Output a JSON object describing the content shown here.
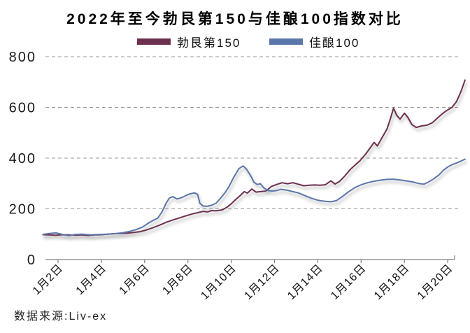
{
  "title": "2022年至今勃艮第150与佳酿100指数对比",
  "source_note": "数据来源:Liv-ex",
  "legend": [
    {
      "label": "勃艮第150",
      "color": "#6d2f4e"
    },
    {
      "label": "佳酿100",
      "color": "#5b76a9"
    }
  ],
  "colors": {
    "grid": "#999999",
    "axis": "#808080"
  },
  "chart_data": {
    "type": "line",
    "title": "2022年至今勃艮第150与佳酿100指数对比",
    "xlabel": "",
    "ylabel": "",
    "grid": "horizontal-dashed",
    "legend_position": "top",
    "source": "数据来源:Liv-ex",
    "y_axis": {
      "min": 0,
      "max": 800,
      "ticks": [
        0,
        200,
        400,
        600,
        800
      ]
    },
    "x_axis": {
      "tick_labels": [
        "1月2日",
        "1月4日",
        "1月6日",
        "1月8日",
        "1月10日",
        "1月12日",
        "1月14日",
        "1月16日",
        "1月18日",
        "1月20日"
      ],
      "tick_days": [
        2,
        4,
        6,
        8,
        10,
        12,
        14,
        16,
        18,
        20
      ]
    },
    "series": [
      {
        "name": "勃艮第150",
        "color": "#6d2f4e",
        "points": [
          [
            1.3,
            98
          ],
          [
            1.6,
            97
          ],
          [
            1.9,
            96
          ],
          [
            2.2,
            98
          ],
          [
            2.5,
            97
          ],
          [
            2.8,
            96
          ],
          [
            3.1,
            97
          ],
          [
            3.4,
            95
          ],
          [
            3.7,
            97
          ],
          [
            4.0,
            98
          ],
          [
            4.3,
            100
          ],
          [
            4.6,
            102
          ],
          [
            4.9,
            103
          ],
          [
            5.2,
            104
          ],
          [
            5.5,
            107
          ],
          [
            5.8,
            110
          ],
          [
            6.1,
            117
          ],
          [
            6.4,
            126
          ],
          [
            6.7,
            136
          ],
          [
            7.0,
            147
          ],
          [
            7.3,
            156
          ],
          [
            7.6,
            164
          ],
          [
            7.9,
            172
          ],
          [
            8.2,
            180
          ],
          [
            8.5,
            186
          ],
          [
            8.7,
            190
          ],
          [
            8.9,
            188
          ],
          [
            9.1,
            193
          ],
          [
            9.3,
            192
          ],
          [
            9.6,
            196
          ],
          [
            9.8,
            206
          ],
          [
            10.0,
            220
          ],
          [
            10.2,
            236
          ],
          [
            10.45,
            255
          ],
          [
            10.6,
            268
          ],
          [
            10.75,
            262
          ],
          [
            10.95,
            278
          ],
          [
            11.15,
            266
          ],
          [
            11.35,
            268
          ],
          [
            11.6,
            270
          ],
          [
            11.85,
            288
          ],
          [
            12.1,
            296
          ],
          [
            12.35,
            303
          ],
          [
            12.6,
            299
          ],
          [
            12.85,
            303
          ],
          [
            13.1,
            297
          ],
          [
            13.35,
            291
          ],
          [
            13.6,
            293
          ],
          [
            13.85,
            294
          ],
          [
            14.1,
            293
          ],
          [
            14.35,
            295
          ],
          [
            14.6,
            310
          ],
          [
            14.8,
            298
          ],
          [
            15.0,
            308
          ],
          [
            15.25,
            330
          ],
          [
            15.5,
            355
          ],
          [
            15.75,
            375
          ],
          [
            15.95,
            390
          ],
          [
            16.2,
            415
          ],
          [
            16.45,
            444
          ],
          [
            16.6,
            462
          ],
          [
            16.75,
            448
          ],
          [
            16.95,
            478
          ],
          [
            17.2,
            515
          ],
          [
            17.35,
            555
          ],
          [
            17.5,
            597
          ],
          [
            17.65,
            568
          ],
          [
            17.8,
            554
          ],
          [
            18.0,
            577
          ],
          [
            18.15,
            562
          ],
          [
            18.35,
            532
          ],
          [
            18.55,
            521
          ],
          [
            18.8,
            527
          ],
          [
            19.05,
            530
          ],
          [
            19.3,
            540
          ],
          [
            19.55,
            560
          ],
          [
            19.8,
            578
          ],
          [
            20.0,
            590
          ],
          [
            20.2,
            600
          ],
          [
            20.4,
            622
          ],
          [
            20.6,
            660
          ],
          [
            20.8,
            708
          ]
        ]
      },
      {
        "name": "佳酿100",
        "color": "#5b76a9",
        "points": [
          [
            1.3,
            99
          ],
          [
            1.6,
            103
          ],
          [
            1.9,
            105
          ],
          [
            2.2,
            99
          ],
          [
            2.5,
            94
          ],
          [
            2.8,
            99
          ],
          [
            3.1,
            100
          ],
          [
            3.5,
            97
          ],
          [
            3.9,
            99
          ],
          [
            4.3,
            100
          ],
          [
            4.7,
            103
          ],
          [
            5.0,
            106
          ],
          [
            5.3,
            111
          ],
          [
            5.6,
            118
          ],
          [
            5.9,
            128
          ],
          [
            6.2,
            145
          ],
          [
            6.45,
            157
          ],
          [
            6.6,
            163
          ],
          [
            6.8,
            188
          ],
          [
            7.0,
            224
          ],
          [
            7.15,
            243
          ],
          [
            7.3,
            248
          ],
          [
            7.5,
            239
          ],
          [
            7.7,
            244
          ],
          [
            7.9,
            252
          ],
          [
            8.1,
            259
          ],
          [
            8.3,
            263
          ],
          [
            8.45,
            257
          ],
          [
            8.55,
            222
          ],
          [
            8.7,
            211
          ],
          [
            8.9,
            210
          ],
          [
            9.1,
            214
          ],
          [
            9.3,
            222
          ],
          [
            9.5,
            241
          ],
          [
            9.7,
            262
          ],
          [
            9.9,
            288
          ],
          [
            10.1,
            322
          ],
          [
            10.35,
            358
          ],
          [
            10.55,
            369
          ],
          [
            10.7,
            357
          ],
          [
            10.9,
            330
          ],
          [
            11.05,
            305
          ],
          [
            11.2,
            296
          ],
          [
            11.35,
            299
          ],
          [
            11.5,
            283
          ],
          [
            11.7,
            272
          ],
          [
            11.9,
            270
          ],
          [
            12.1,
            272
          ],
          [
            12.3,
            277
          ],
          [
            12.55,
            274
          ],
          [
            12.8,
            269
          ],
          [
            13.1,
            263
          ],
          [
            13.4,
            252
          ],
          [
            13.7,
            242
          ],
          [
            14.0,
            234
          ],
          [
            14.3,
            230
          ],
          [
            14.6,
            228
          ],
          [
            14.85,
            232
          ],
          [
            15.1,
            246
          ],
          [
            15.4,
            266
          ],
          [
            15.7,
            283
          ],
          [
            16.0,
            295
          ],
          [
            16.3,
            303
          ],
          [
            16.6,
            309
          ],
          [
            16.9,
            313
          ],
          [
            17.2,
            316
          ],
          [
            17.5,
            317
          ],
          [
            17.8,
            314
          ],
          [
            18.1,
            310
          ],
          [
            18.4,
            306
          ],
          [
            18.65,
            300
          ],
          [
            18.9,
            297
          ],
          [
            19.1,
            305
          ],
          [
            19.35,
            318
          ],
          [
            19.6,
            334
          ],
          [
            19.8,
            352
          ],
          [
            20.0,
            365
          ],
          [
            20.2,
            374
          ],
          [
            20.5,
            384
          ],
          [
            20.8,
            396
          ]
        ]
      }
    ]
  }
}
